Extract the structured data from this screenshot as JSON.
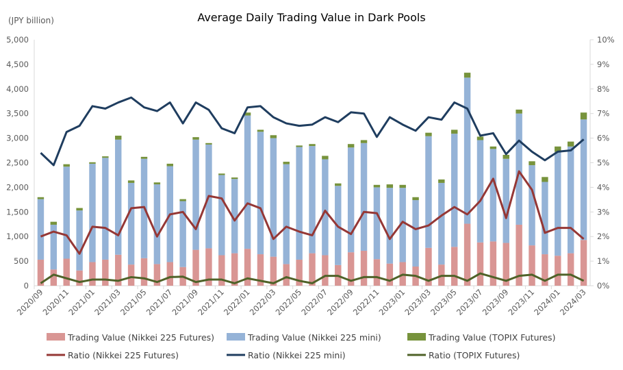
{
  "chart_data": {
    "type": "bar",
    "title": "Average Daily Trading Value in Dark Pools",
    "ylabel": "(JPY billion)",
    "ylim": [
      0,
      5000
    ],
    "y_ticks": [
      "0",
      "500",
      "1,000",
      "1,500",
      "2,000",
      "2,500",
      "3,000",
      "3,500",
      "4,000",
      "4,500",
      "5,000"
    ],
    "y2lim": [
      0,
      10
    ],
    "y2_ticks": [
      "0%",
      "1%",
      "2%",
      "3%",
      "4%",
      "5%",
      "6%",
      "7%",
      "8%",
      "9%",
      "10%"
    ],
    "x": [
      "2020/09",
      "2020/10",
      "2020/11",
      "2020/12",
      "2021/01",
      "2021/02",
      "2021/03",
      "2021/04",
      "2021/05",
      "2021/06",
      "2021/07",
      "2021/08",
      "2021/09",
      "2021/10",
      "2021/11",
      "2021/12",
      "2022/01",
      "2022/02",
      "2022/03",
      "2022/04",
      "2022/05",
      "2022/06",
      "2022/07",
      "2022/08",
      "2022/09",
      "2022/10",
      "2022/11",
      "2022/12",
      "2023/01",
      "2023/02",
      "2023/03",
      "2023/04",
      "2023/05",
      "2023/06",
      "2023/07",
      "2023/08",
      "2023/09",
      "2023/10",
      "2023/11",
      "2023/12",
      "2024/01",
      "2024/02",
      "2024/03"
    ],
    "x_tick_labels": [
      "2020/09",
      "2020/11",
      "2021/01",
      "2021/03",
      "2021/05",
      "2021/07",
      "2021/09",
      "2021/11",
      "2022/01",
      "2022/03",
      "2022/05",
      "2022/07",
      "2022/09",
      "2022/11",
      "2023/01",
      "2023/03",
      "2023/05",
      "2023/07",
      "2023/09",
      "2023/11",
      "2024/01",
      "2024/03"
    ],
    "bar_series": [
      {
        "name": "Trading Value (Nikkei 225 Futures)",
        "color": "#d99694",
        "values": [
          530,
          330,
          550,
          310,
          480,
          530,
          630,
          430,
          560,
          440,
          480,
          380,
          730,
          760,
          620,
          660,
          750,
          640,
          590,
          440,
          530,
          660,
          620,
          420,
          680,
          710,
          540,
          450,
          480,
          390,
          770,
          430,
          790,
          1260,
          880,
          900,
          870,
          1240,
          820,
          640,
          610,
          660,
          930
        ]
      },
      {
        "name": "Trading Value (Nikkei 225 mini)",
        "color": "#95b3d7",
        "values": [
          1230,
          910,
          1870,
          1220,
          2000,
          2070,
          2340,
          1660,
          2020,
          1620,
          1950,
          1340,
          2240,
          2110,
          1630,
          1510,
          2710,
          2490,
          2410,
          2030,
          2290,
          2180,
          1950,
          1610,
          2130,
          2190,
          1460,
          1540,
          1510,
          1350,
          2270,
          1660,
          2300,
          2970,
          2080,
          1880,
          1710,
          2260,
          1630,
          1470,
          2110,
          2170,
          2450
        ]
      },
      {
        "name": "Trading Value (TOPIX Futures)",
        "color": "#77933c",
        "values": [
          40,
          60,
          50,
          50,
          30,
          30,
          80,
          50,
          40,
          40,
          50,
          40,
          50,
          30,
          30,
          30,
          60,
          40,
          60,
          50,
          30,
          40,
          70,
          50,
          70,
          60,
          50,
          70,
          60,
          60,
          70,
          70,
          80,
          100,
          70,
          50,
          80,
          80,
          80,
          100,
          110,
          100,
          140
        ]
      }
    ],
    "line_series": [
      {
        "name": "Ratio (Nikkei 225 Futures)",
        "color": "#953735",
        "values": [
          2.0,
          2.2,
          2.05,
          1.3,
          2.4,
          2.35,
          2.05,
          3.15,
          3.2,
          2.0,
          2.9,
          3.0,
          2.3,
          3.65,
          3.55,
          2.65,
          3.35,
          3.15,
          1.9,
          2.4,
          2.2,
          2.05,
          3.05,
          2.4,
          2.1,
          3.0,
          2.95,
          1.9,
          2.6,
          2.3,
          2.45,
          2.85,
          3.2,
          2.9,
          3.45,
          4.35,
          2.75,
          4.65,
          3.9,
          2.15,
          2.35,
          2.35,
          1.9
        ]
      },
      {
        "name": "Ratio (Nikkei 225 mini)",
        "color": "#1f3d5f",
        "values": [
          5.4,
          4.9,
          6.25,
          6.5,
          7.3,
          7.2,
          7.45,
          7.65,
          7.25,
          7.1,
          7.45,
          6.6,
          7.45,
          7.15,
          6.4,
          6.2,
          7.25,
          7.3,
          6.85,
          6.6,
          6.5,
          6.55,
          6.85,
          6.65,
          7.05,
          7.0,
          6.05,
          6.85,
          6.55,
          6.3,
          6.85,
          6.75,
          7.45,
          7.2,
          6.1,
          6.2,
          5.35,
          5.9,
          5.45,
          5.1,
          5.45,
          5.5,
          5.95
        ]
      },
      {
        "name": "Ratio (TOPIX Futures)",
        "color": "#4f6228",
        "values": [
          0.1,
          0.45,
          0.3,
          0.15,
          0.25,
          0.25,
          0.2,
          0.35,
          0.3,
          0.15,
          0.35,
          0.37,
          0.15,
          0.25,
          0.25,
          0.1,
          0.3,
          0.2,
          0.1,
          0.35,
          0.2,
          0.1,
          0.4,
          0.4,
          0.2,
          0.35,
          0.35,
          0.2,
          0.45,
          0.4,
          0.2,
          0.4,
          0.4,
          0.2,
          0.5,
          0.35,
          0.2,
          0.4,
          0.45,
          0.2,
          0.45,
          0.45,
          0.2
        ]
      }
    ],
    "legend_position": "bottom",
    "grid": false
  }
}
